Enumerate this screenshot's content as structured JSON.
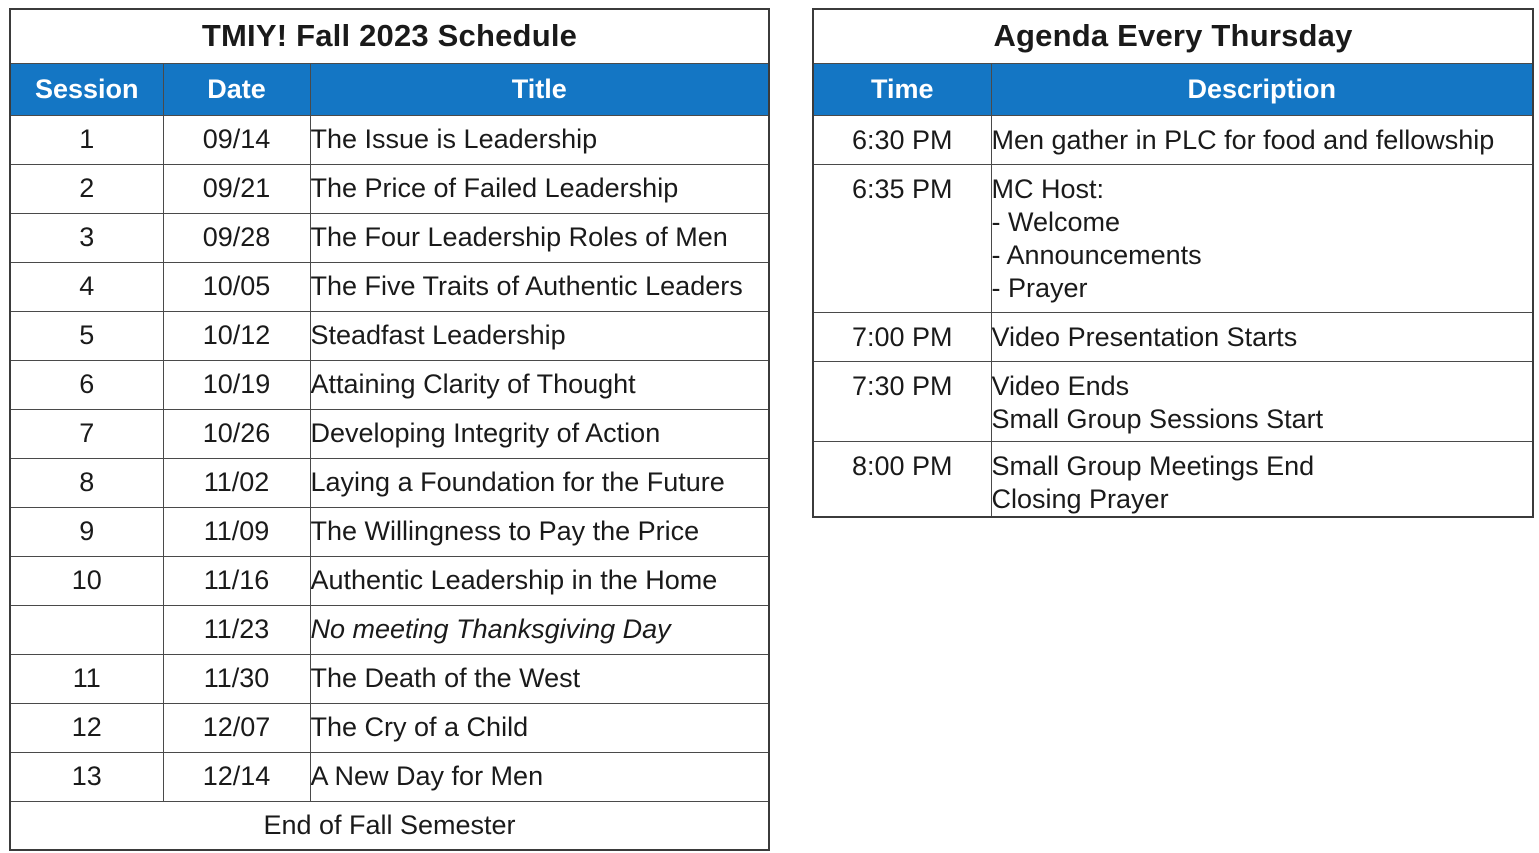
{
  "colors": {
    "header_bg": "#1476C4",
    "header_text": "#FFFFFF",
    "border_outer": "#3B3B3B",
    "border_inner": "#4A4A4A",
    "text": "#1A1A1A",
    "bg": "#FFFFFF"
  },
  "schedule_table": {
    "title": "TMIY! Fall 2023 Schedule",
    "columns": [
      "Session",
      "Date",
      "Title"
    ],
    "rows": [
      {
        "session": "1",
        "date": "09/14",
        "title": "The Issue is Leadership",
        "italic": false
      },
      {
        "session": "2",
        "date": "09/21",
        "title": "The Price of Failed Leadership",
        "italic": false
      },
      {
        "session": "3",
        "date": "09/28",
        "title": "The Four Leadership Roles of Men",
        "italic": false
      },
      {
        "session": "4",
        "date": "10/05",
        "title": "The Five Traits of Authentic Leaders",
        "italic": false
      },
      {
        "session": "5",
        "date": "10/12",
        "title": "Steadfast Leadership",
        "italic": false
      },
      {
        "session": "6",
        "date": "10/19",
        "title": "Attaining Clarity of Thought",
        "italic": false
      },
      {
        "session": "7",
        "date": "10/26",
        "title": "Developing Integrity of Action",
        "italic": false
      },
      {
        "session": "8",
        "date": "11/02",
        "title": "Laying a Foundation for the Future",
        "italic": false
      },
      {
        "session": "9",
        "date": "11/09",
        "title": "The Willingness to Pay the Price",
        "italic": false
      },
      {
        "session": "10",
        "date": "11/16",
        "title": "Authentic Leadership in the Home",
        "italic": false
      },
      {
        "session": "",
        "date": "11/23",
        "title": "No meeting Thanksgiving Day",
        "italic": true
      },
      {
        "session": "11",
        "date": "11/30",
        "title": "The Death of the West",
        "italic": false
      },
      {
        "session": "12",
        "date": "12/07",
        "title": "The Cry of a Child",
        "italic": false
      },
      {
        "session": "13",
        "date": "12/14",
        "title": "A New Day for Men",
        "italic": false
      }
    ],
    "footer": "End of Fall Semester"
  },
  "agenda_table": {
    "title": "Agenda Every Thursday",
    "columns": [
      "Time",
      "Description"
    ],
    "rows": [
      {
        "time": "6:30 PM",
        "description_lines": [
          "Men gather in PLC for food and fellowship"
        ]
      },
      {
        "time": "6:35 PM",
        "description_lines": [
          "MC Host:",
          "- Welcome",
          "- Announcements",
          "- Prayer"
        ]
      },
      {
        "time": "7:00 PM",
        "description_lines": [
          "Video Presentation Starts"
        ]
      },
      {
        "time": "7:30 PM",
        "description_lines": [
          "Video Ends",
          "Small Group Sessions Start"
        ]
      },
      {
        "time": "8:00 PM",
        "description_lines": [
          "Small Group Meetings End",
          "Closing Prayer"
        ]
      }
    ]
  }
}
